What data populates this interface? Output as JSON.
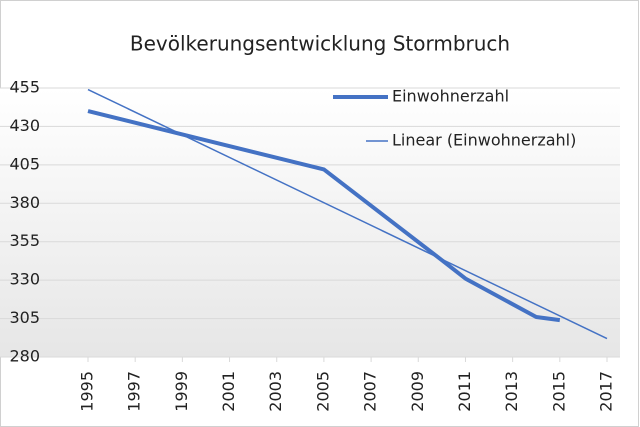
{
  "chart_data": {
    "type": "line",
    "title": "Bevölkerungsentwicklung Stormbruch",
    "series": [
      {
        "name": "Einwohnerzahl",
        "color": "#4472c4",
        "x": [
          1995,
          2000,
          2005,
          2010,
          2011,
          2014,
          2015
        ],
        "values": [
          440,
          421,
          402,
          343,
          331,
          306,
          304
        ]
      },
      {
        "name": "Linear (Einwohnerzahl)",
        "color": "#4472c4",
        "x": [
          1995,
          2017
        ],
        "values": [
          454,
          292
        ]
      }
    ],
    "xlim": [
      1995,
      2017
    ],
    "xticks": [
      1995,
      1997,
      1999,
      2001,
      2003,
      2005,
      2007,
      2009,
      2011,
      2013,
      2015,
      2017
    ],
    "ylim": [
      280,
      455
    ],
    "yticks": [
      280,
      305,
      330,
      355,
      380,
      405,
      430,
      455
    ],
    "grid": true,
    "legend": "top-right"
  }
}
